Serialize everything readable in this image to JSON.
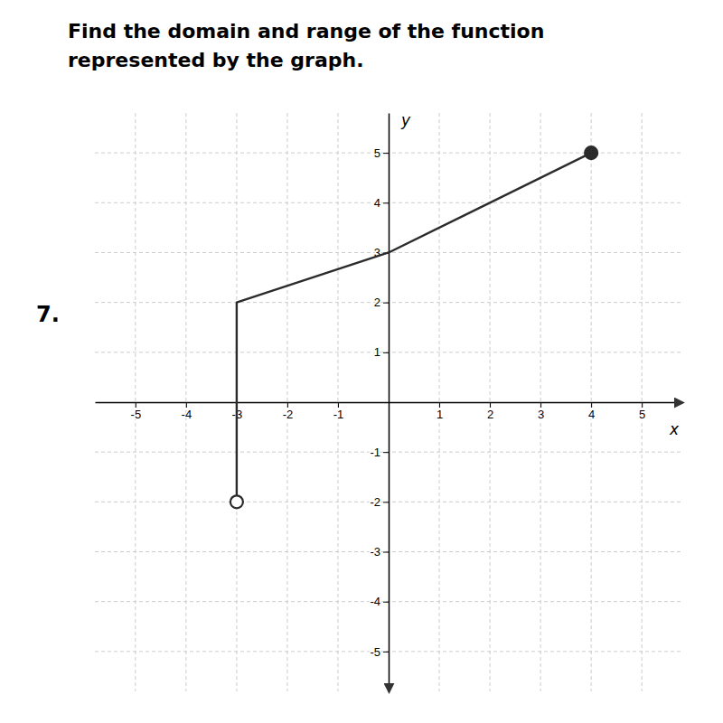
{
  "chart_data": {
    "type": "line",
    "title": "Find the domain and range of the function",
    "subtitle": "represented by the graph.",
    "annotations": [
      "7."
    ],
    "x_label": "x",
    "y_label": "y",
    "xlim": [
      -5.8,
      5.8
    ],
    "ylim": [
      -5.8,
      5.8
    ],
    "xticks": [
      -5,
      -4,
      -3,
      -2,
      -1,
      1,
      2,
      3,
      4,
      5
    ],
    "yticks": [
      -5,
      -4,
      -3,
      -2,
      -1,
      1,
      2,
      3,
      4,
      5
    ],
    "grid": true,
    "series": [
      {
        "type": "line",
        "color": "#2b2b2b",
        "x": [
          -3,
          -3,
          0,
          4
        ],
        "values": [
          -2,
          2,
          3,
          5
        ]
      },
      {
        "type": "scatter",
        "marker": "open-circle",
        "color": "#2b2b2b",
        "x": [
          -3
        ],
        "values": [
          -2
        ]
      },
      {
        "type": "scatter",
        "marker": "circle",
        "color": "#2b2b2b",
        "x": [
          4
        ],
        "values": [
          5
        ]
      }
    ]
  }
}
